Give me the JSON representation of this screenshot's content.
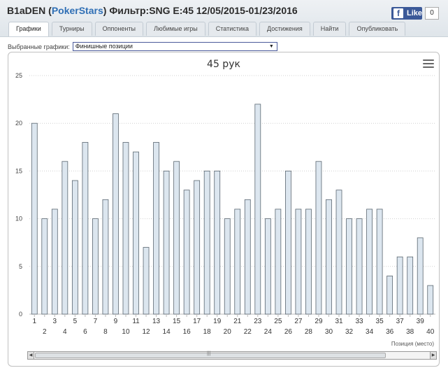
{
  "header": {
    "player": "B1aDEN",
    "paren_open": "(",
    "site": "PokerStars",
    "paren_close": ")",
    "filter": "Фильтр:SNG E:45 12/05/2015-01/23/2016"
  },
  "facebook": {
    "f": "f",
    "like_label": "Like",
    "count": "0"
  },
  "tabs": [
    "Графики",
    "Турниры",
    "Оппоненты",
    "Любимые игры",
    "Статистика",
    "Достижения",
    "Найти",
    "Опубликовать"
  ],
  "selector": {
    "label": "Выбранные графики:",
    "value": "Финишные позиции",
    "arrow": "▼"
  },
  "scrollbar": {
    "left": "◀",
    "right": "▶",
    "grip": "|||"
  },
  "chart_data": {
    "type": "bar",
    "title": "45 рук",
    "xlabel": "Позиция (место)",
    "ylabel": "",
    "ylim": [
      0,
      25
    ],
    "yticks": [
      0,
      5,
      10,
      15,
      20,
      25
    ],
    "grid": true,
    "categories": [
      "1",
      "2",
      "3",
      "4",
      "5",
      "6",
      "7",
      "8",
      "9",
      "10",
      "11",
      "12",
      "13",
      "14",
      "15",
      "16",
      "17",
      "18",
      "19",
      "20",
      "21",
      "22",
      "23",
      "24",
      "25",
      "26",
      "27",
      "28",
      "29",
      "30",
      "31",
      "32",
      "33",
      "34",
      "35",
      "36",
      "37",
      "38",
      "39",
      "40"
    ],
    "values": [
      20,
      10,
      11,
      16,
      14,
      18,
      10,
      12,
      21,
      18,
      17,
      7,
      18,
      15,
      16,
      13,
      14,
      15,
      15,
      10,
      11,
      12,
      22,
      10,
      11,
      15,
      11,
      11,
      16,
      12,
      13,
      10,
      10,
      11,
      11,
      4,
      6,
      6,
      8,
      3
    ],
    "colors": {
      "bar_fill": "#dce6ef",
      "bar_stroke": "#5a6670",
      "grid": "#d0d0d0",
      "axis": "#bbbbbb"
    }
  }
}
